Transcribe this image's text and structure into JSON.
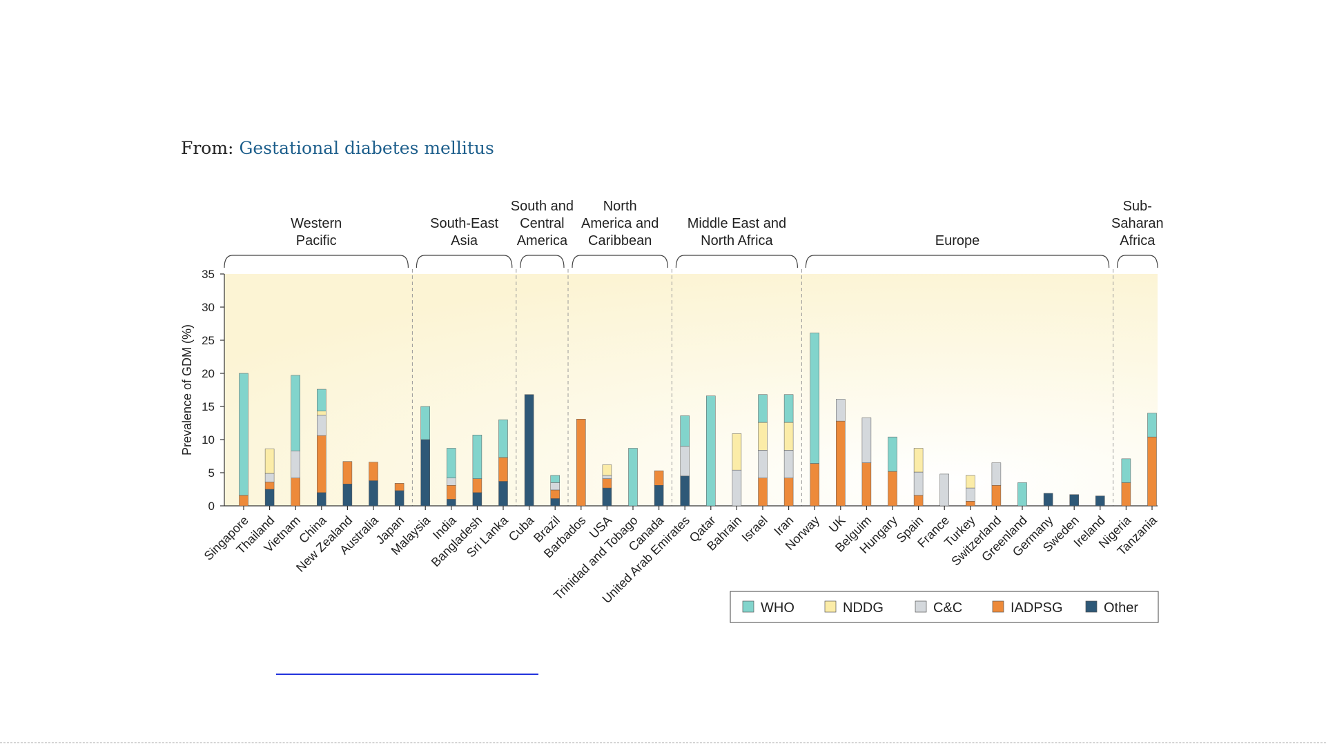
{
  "header": {
    "prefix": "From: ",
    "link_text": "Gestational diabetes mellitus"
  },
  "colors": {
    "WHO": "#82d4cc",
    "NDDG": "#fbeca8",
    "C&C": "#d4d8dc",
    "IADPSG": "#ed8a3a",
    "Other": "#2e5877",
    "background_tint": "#fdf7d8",
    "link": "#1e5f8c"
  },
  "chart_data": {
    "type": "bar",
    "stacked": true,
    "ylabel": "Prevalence of GDM (%)",
    "xlabel": "",
    "ylim": [
      0,
      35
    ],
    "yticks": [
      0,
      5,
      10,
      15,
      20,
      25,
      30,
      35
    ],
    "legend": {
      "placement": "bottom-right",
      "entries": [
        "WHO",
        "NDDG",
        "C&C",
        "IADPSG",
        "Other"
      ]
    },
    "regions": [
      {
        "name": "Western\nPacific",
        "countries": [
          "Singapore",
          "Thailand",
          "Vietnam",
          "China",
          "New Zealand",
          "Australia",
          "Japan"
        ]
      },
      {
        "name": "South-East\nAsia",
        "countries": [
          "Malaysia",
          "India",
          "Bangladesh",
          "Sri Lanka"
        ]
      },
      {
        "name": "South and\nCentral\nAmerica",
        "countries": [
          "Cuba",
          "Brazil"
        ]
      },
      {
        "name": "North\nAmerica and\nCaribbean",
        "countries": [
          "Barbados",
          "USA",
          "Trinidad and Tobago",
          "Canada"
        ]
      },
      {
        "name": "Middle East and\nNorth Africa",
        "countries": [
          "United Arab Emirates",
          "Qatar",
          "Bahrain",
          "Israel",
          "Iran"
        ]
      },
      {
        "name": "Europe",
        "countries": [
          "Norway",
          "UK",
          "Belguim",
          "Hungary",
          "Spain",
          "France",
          "Turkey",
          "Switzerland",
          "Greenland",
          "Germany",
          "Sweden",
          "Ireland"
        ]
      },
      {
        "name": "Sub-\nSaharan\nAfrica",
        "countries": [
          "Nigeria",
          "Tanzania"
        ]
      }
    ],
    "categories": [
      "Singapore",
      "Thailand",
      "Vietnam",
      "China",
      "New Zealand",
      "Australia",
      "Japan",
      "Malaysia",
      "India",
      "Bangladesh",
      "Sri Lanka",
      "Cuba",
      "Brazil",
      "Barbados",
      "USA",
      "Trinidad and Tobago",
      "Canada",
      "United Arab Emirates",
      "Qatar",
      "Bahrain",
      "Israel",
      "Iran",
      "Norway",
      "UK",
      "Belguim",
      "Hungary",
      "Spain",
      "France",
      "Turkey",
      "Switzerland",
      "Greenland",
      "Germany",
      "Sweden",
      "Ireland",
      "Nigeria",
      "Tanzania"
    ],
    "series": [
      {
        "name": "Other",
        "values": [
          0,
          2.5,
          0,
          2.0,
          3.3,
          3.8,
          2.3,
          10.0,
          1.0,
          2.0,
          3.7,
          16.8,
          1.1,
          0,
          2.7,
          0,
          3.1,
          4.5,
          0,
          0,
          0,
          0,
          0,
          0,
          0,
          0,
          0,
          0,
          0,
          0,
          0,
          1.9,
          1.7,
          1.5,
          0,
          0
        ]
      },
      {
        "name": "IADPSG",
        "values": [
          1.6,
          1.1,
          4.2,
          8.6,
          3.4,
          2.8,
          1.1,
          0,
          2.1,
          2.1,
          3.6,
          0,
          1.3,
          13.1,
          1.4,
          0,
          2.2,
          0,
          0,
          0,
          4.2,
          4.2,
          6.4,
          12.8,
          6.5,
          5.2,
          1.6,
          0,
          0.7,
          3.1,
          0,
          0,
          0,
          0,
          3.5,
          10.4
        ]
      },
      {
        "name": "C&C",
        "values": [
          0,
          1.3,
          4.1,
          3.1,
          0,
          0,
          0,
          0,
          1.1,
          0,
          0,
          0,
          1.1,
          0,
          0.5,
          0,
          0,
          4.5,
          0,
          5.4,
          4.2,
          4.2,
          0,
          3.3,
          6.8,
          0,
          3.5,
          4.8,
          2.0,
          3.4,
          0,
          0,
          0,
          0,
          0,
          0
        ]
      },
      {
        "name": "NDDG",
        "values": [
          0,
          3.7,
          0,
          0.6,
          0,
          0,
          0,
          0,
          0,
          0,
          0,
          0,
          0,
          0,
          1.6,
          0,
          0,
          0,
          0,
          5.5,
          4.2,
          4.2,
          0,
          0,
          0,
          0,
          3.6,
          0,
          1.9,
          0,
          0,
          0,
          0,
          0,
          0,
          0
        ]
      },
      {
        "name": "WHO",
        "values": [
          18.4,
          0,
          11.4,
          3.3,
          0,
          0,
          0,
          5.0,
          4.5,
          6.6,
          5.7,
          0,
          1.1,
          0,
          0,
          8.7,
          0,
          4.6,
          16.6,
          0,
          4.2,
          4.2,
          19.7,
          0,
          0,
          5.2,
          0,
          0,
          0,
          0,
          3.5,
          0,
          0,
          0,
          3.6,
          3.6
        ]
      }
    ]
  },
  "footer": {
    "link_text": ""
  }
}
